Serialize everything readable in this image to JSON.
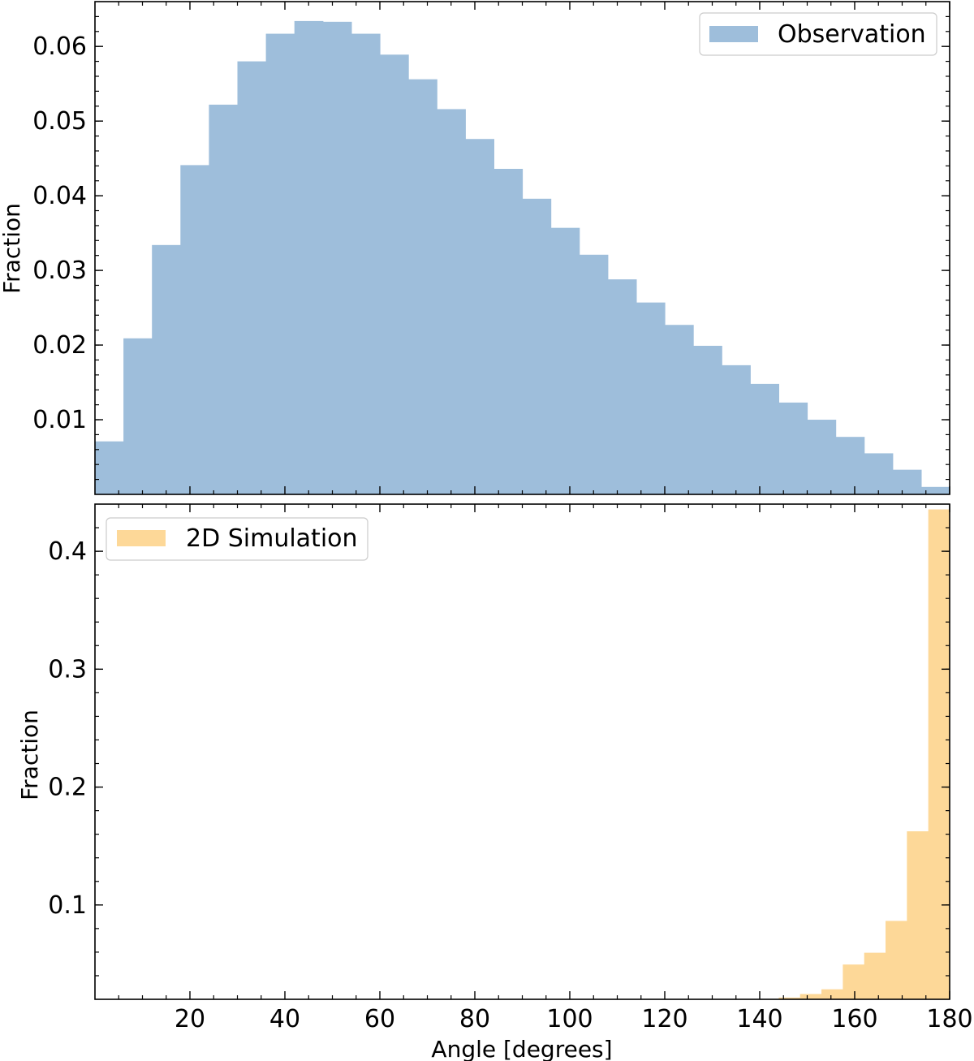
{
  "chart_data": [
    {
      "type": "bar",
      "subtype": "histogram",
      "xlim": [
        0,
        180
      ],
      "ylim": [
        0,
        0.066
      ],
      "x_tick_labels_shown": false,
      "yticks": [
        0.01,
        0.02,
        0.03,
        0.04,
        0.05,
        0.06
      ],
      "ytick_labels": [
        "0.01",
        "0.02",
        "0.03",
        "0.04",
        "0.05",
        "0.06"
      ],
      "xlabel": "",
      "ylabel": "Fraction",
      "legend_position": "top-right",
      "grid": false,
      "series": [
        {
          "name": "Observation",
          "color": "#9ebedb",
          "bin_width": 6,
          "bin_edges": [
            0,
            6,
            12,
            18,
            24,
            30,
            36,
            42,
            48,
            54,
            60,
            66,
            72,
            78,
            84,
            90,
            96,
            102,
            108,
            114,
            120,
            126,
            132,
            138,
            144,
            150,
            156,
            162,
            168,
            174,
            180
          ],
          "values": [
            0.0071,
            0.0209,
            0.0334,
            0.0441,
            0.0522,
            0.058,
            0.0617,
            0.0634,
            0.0633,
            0.0617,
            0.0589,
            0.0556,
            0.0516,
            0.0476,
            0.0436,
            0.0396,
            0.0357,
            0.0321,
            0.0288,
            0.0257,
            0.0227,
            0.0199,
            0.0173,
            0.0148,
            0.0123,
            0.01,
            0.0077,
            0.0055,
            0.0033,
            0.001
          ]
        }
      ]
    },
    {
      "type": "bar",
      "subtype": "histogram",
      "xlim": [
        0,
        180
      ],
      "ylim": [
        0.02,
        0.44
      ],
      "xticks": [
        20,
        40,
        60,
        80,
        100,
        120,
        140,
        160,
        180
      ],
      "xtick_labels": [
        "20",
        "40",
        "60",
        "80",
        "100",
        "120",
        "140",
        "160",
        "180"
      ],
      "yticks": [
        0.1,
        0.2,
        0.3,
        0.4
      ],
      "ytick_labels": [
        "0.1",
        "0.2",
        "0.3",
        "0.4"
      ],
      "xlabel": "Angle [degrees]",
      "ylabel": "Fraction",
      "legend_position": "top-left",
      "grid": false,
      "series": [
        {
          "name": "2D Simulation",
          "color": "#fdd898",
          "bin_width": 4.5,
          "bin_edges": [
            144,
            148.5,
            153,
            157.5,
            162,
            166.5,
            171,
            175.5,
            180
          ],
          "values": [
            0.0215,
            0.0245,
            0.0285,
            0.0495,
            0.0595,
            0.0865,
            0.1625,
            0.4355
          ]
        }
      ]
    }
  ]
}
